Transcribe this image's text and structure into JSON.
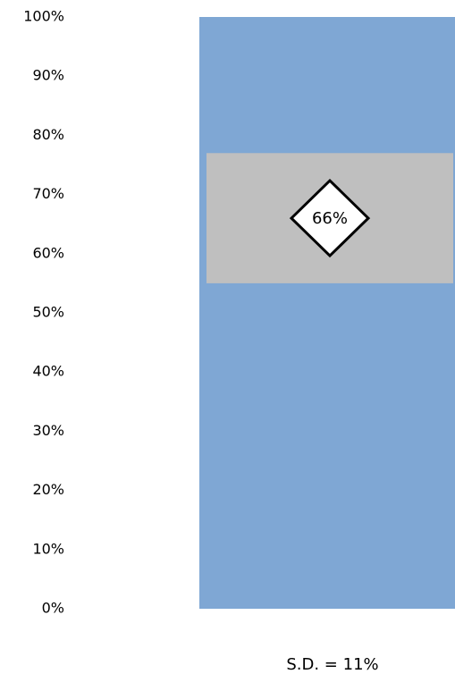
{
  "chart_data": {
    "type": "bar",
    "ylim": [
      0,
      100
    ],
    "y_ticks": [
      "0%",
      "10%",
      "20%",
      "30%",
      "40%",
      "50%",
      "60%",
      "70%",
      "80%",
      "90%",
      "100%"
    ],
    "bar_value": 100,
    "band": {
      "low": 55,
      "high": 77
    },
    "mean": {
      "value": 66,
      "label": "66%"
    },
    "sd_label": "S.D. = 11%",
    "grid": false,
    "colors": {
      "bar": "#7fa7d4",
      "band": "#bfbfbf",
      "marker_fill": "#ffffff",
      "marker_stroke": "#000000"
    }
  }
}
